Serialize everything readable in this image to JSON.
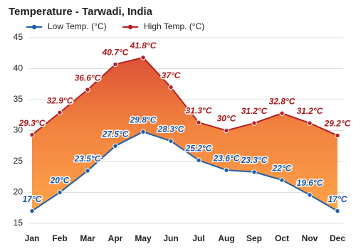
{
  "chart_data": {
    "type": "line",
    "title": "Temperature - Tarwadi, India",
    "categories": [
      "Jan",
      "Feb",
      "Mar",
      "Apr",
      "May",
      "Jun",
      "Jul",
      "Aug",
      "Sep",
      "Oct",
      "Nov",
      "Dec"
    ],
    "series": [
      {
        "name": "Low Temp. (°C)",
        "color": "#1f5fa8",
        "values": [
          17,
          20,
          23.5,
          27.5,
          29.8,
          28.3,
          25.2,
          23.6,
          23.3,
          22,
          19.6,
          17
        ],
        "value_labels": [
          "17°C",
          "20°C",
          "23.5°C",
          "27.5°C",
          "29.8°C",
          "28.3°C",
          "25.2°C",
          "23.6°C",
          "23.3°C",
          "22°C",
          "19.6°C",
          "17°C"
        ]
      },
      {
        "name": "High Temp. (°C)",
        "color": "#b52025",
        "values": [
          29.3,
          32.9,
          36.6,
          40.7,
          41.8,
          37,
          31.3,
          30,
          31.2,
          32.8,
          31.2,
          29.2
        ],
        "value_labels": [
          "29.3°C",
          "32.9°C",
          "36.6°C",
          "40.7°C",
          "41.8°C",
          "37°C",
          "31.3°C",
          "30°C",
          "31.2°C",
          "32.8°C",
          "31.2°C",
          "29.2°C"
        ]
      }
    ],
    "ylim": [
      15,
      45
    ],
    "yticks": [
      15,
      20,
      25,
      30,
      35,
      40,
      45
    ],
    "grid": true
  }
}
